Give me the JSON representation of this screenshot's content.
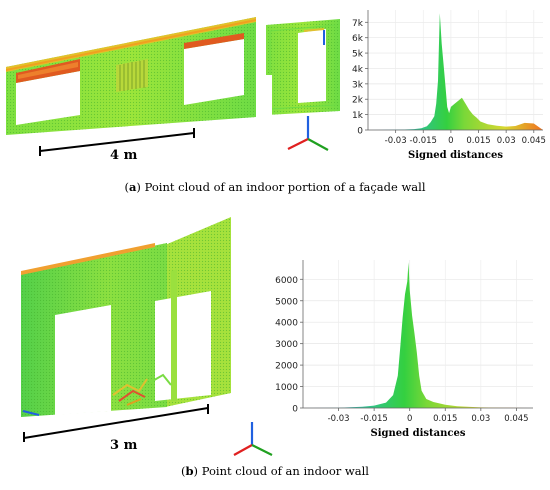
{
  "panel_a": {
    "scale_label": "4 m",
    "caption_letter": "a",
    "caption_text": " Point cloud of an indoor portion of a façade wall"
  },
  "panel_b": {
    "scale_label": "3 m",
    "caption_letter": "b",
    "caption_text": " Point cloud of an indoor wall"
  },
  "colors": {
    "axis_x": "#e02020",
    "axis_y": "#20a020",
    "axis_z": "#2060e0"
  },
  "chart_data": [
    {
      "type": "area",
      "xlabel": "Signed distances",
      "ylabel": "",
      "title": "",
      "x_ticks": [
        "-0.03",
        "-0.015",
        "0",
        "0.015",
        "0.03",
        "0.045"
      ],
      "y_ticks": [
        "0",
        "1k",
        "2k",
        "3k",
        "4k",
        "5k",
        "6k",
        "7k"
      ],
      "xlim": [
        -0.045,
        0.05
      ],
      "ylim": [
        0,
        7800
      ],
      "x": [
        -0.045,
        -0.035,
        -0.025,
        -0.02,
        -0.016,
        -0.013,
        -0.011,
        -0.009,
        -0.008,
        -0.007,
        -0.006,
        -0.005,
        -0.004,
        -0.003,
        -0.002,
        -0.001,
        0,
        0.002,
        0.004,
        0.006,
        0.008,
        0.01,
        0.012,
        0.014,
        0.016,
        0.02,
        0.025,
        0.03,
        0.035,
        0.04,
        0.045,
        0.05
      ],
      "y": [
        0,
        10,
        30,
        60,
        120,
        250,
        500,
        900,
        1700,
        3200,
        7600,
        5600,
        4300,
        2900,
        1500,
        1100,
        1500,
        1700,
        1900,
        2100,
        1700,
        1300,
        1000,
        800,
        550,
        380,
        280,
        220,
        260,
        460,
        420,
        0
      ]
    },
    {
      "type": "area",
      "xlabel": "Signed distances",
      "ylabel": "",
      "title": "",
      "x_ticks": [
        "-0.03",
        "-0.015",
        "0",
        "0.015",
        "0.03",
        "0.045"
      ],
      "y_ticks": [
        "0",
        "1000",
        "2000",
        "3000",
        "4000",
        "5000",
        "6000"
      ],
      "xlim": [
        -0.045,
        0.052
      ],
      "ylim": [
        0,
        6900
      ],
      "x": [
        -0.045,
        -0.03,
        -0.02,
        -0.015,
        -0.01,
        -0.007,
        -0.005,
        -0.004,
        -0.003,
        -0.002,
        -0.001,
        -0.0005,
        0,
        0.001,
        0.002,
        0.003,
        0.004,
        0.005,
        0.007,
        0.01,
        0.015,
        0.02,
        0.03,
        0.04,
        0.05
      ],
      "y": [
        0,
        15,
        60,
        110,
        250,
        600,
        1500,
        2800,
        4200,
        5300,
        5900,
        6800,
        5500,
        4300,
        3500,
        2600,
        1500,
        800,
        420,
        280,
        150,
        80,
        30,
        15,
        0
      ]
    }
  ]
}
